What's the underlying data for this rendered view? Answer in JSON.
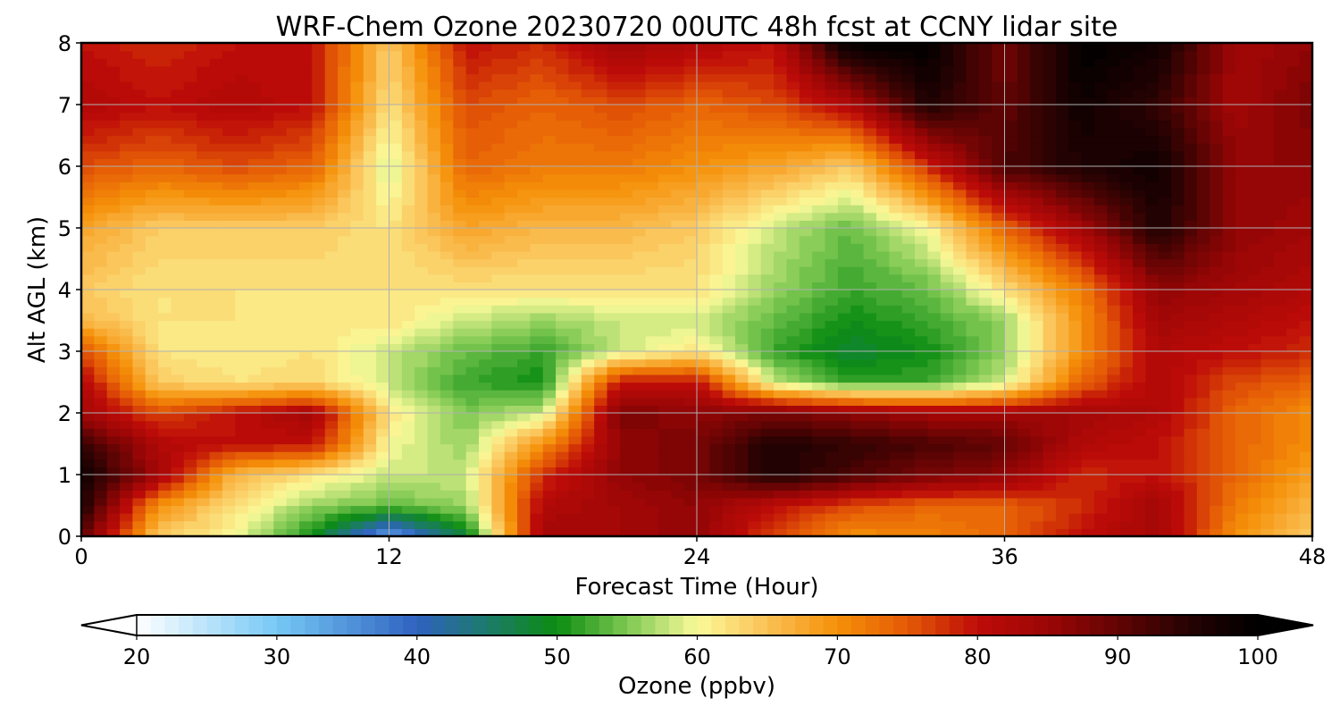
{
  "chart_data": {
    "type": "heatmap",
    "title": "WRF-Chem Ozone  20230720 00UTC 48h fcst at CCNY lidar site",
    "xlabel": "Forecast Time (Hour)",
    "ylabel": "Alt AGL (km)",
    "xlim": [
      0,
      48
    ],
    "ylim": [
      0,
      8
    ],
    "x_ticks": [
      0,
      12,
      24,
      36,
      48
    ],
    "y_ticks": [
      0,
      1,
      2,
      3,
      4,
      5,
      6,
      7,
      8
    ],
    "grid": true,
    "x": [
      0,
      3,
      6,
      9,
      12,
      15,
      18,
      21,
      24,
      27,
      30,
      33,
      36,
      39,
      42,
      45,
      48
    ],
    "y": [
      0,
      0.5,
      1,
      1.5,
      2,
      2.5,
      3,
      3.5,
      4,
      5,
      6,
      7,
      8
    ],
    "z": [
      [
        90,
        64,
        60,
        50,
        33,
        48,
        84,
        84,
        86,
        76,
        70,
        71,
        74,
        80,
        84,
        70,
        64
      ],
      [
        96,
        70,
        62,
        56,
        54,
        56,
        82,
        84,
        86,
        80,
        76,
        74,
        74,
        78,
        84,
        72,
        66
      ],
      [
        98,
        84,
        66,
        62,
        58,
        58,
        78,
        86,
        88,
        96,
        92,
        88,
        86,
        78,
        80,
        74,
        68
      ],
      [
        94,
        82,
        80,
        80,
        60,
        56,
        70,
        86,
        88,
        96,
        94,
        92,
        90,
        82,
        80,
        74,
        70
      ],
      [
        84,
        76,
        80,
        84,
        62,
        55,
        58,
        88,
        86,
        88,
        86,
        84,
        84,
        84,
        82,
        74,
        70
      ],
      [
        82,
        64,
        62,
        63,
        58,
        52,
        50,
        80,
        80,
        58,
        52,
        52,
        58,
        74,
        82,
        76,
        74
      ],
      [
        76,
        62,
        61,
        62,
        58,
        54,
        52,
        58,
        62,
        52,
        48,
        50,
        56,
        70,
        82,
        80,
        78
      ],
      [
        66,
        62,
        62,
        61,
        62,
        58,
        56,
        58,
        58,
        54,
        50,
        52,
        56,
        70,
        84,
        82,
        80
      ],
      [
        64,
        62,
        62,
        62,
        62,
        62,
        62,
        62,
        62,
        56,
        52,
        54,
        62,
        72,
        86,
        84,
        82
      ],
      [
        68,
        64,
        64,
        64,
        62,
        68,
        66,
        66,
        64,
        58,
        54,
        60,
        74,
        84,
        96,
        86,
        84
      ],
      [
        76,
        74,
        76,
        74,
        58,
        74,
        72,
        72,
        70,
        68,
        64,
        78,
        92,
        96,
        98,
        86,
        86
      ],
      [
        82,
        80,
        82,
        80,
        62,
        76,
        74,
        76,
        74,
        76,
        82,
        96,
        90,
        98,
        94,
        84,
        88
      ],
      [
        80,
        78,
        80,
        80,
        64,
        80,
        78,
        84,
        82,
        80,
        100,
        100,
        88,
        100,
        98,
        84,
        86
      ]
    ],
    "colorbar": {
      "label": "Ozone  (ppbv)",
      "min": 20,
      "max": 100,
      "ticks": [
        20,
        30,
        40,
        50,
        60,
        70,
        80,
        90,
        100
      ],
      "extend": "both",
      "levels": 80,
      "colors": [
        {
          "v": 20,
          "c": "#ffffff"
        },
        {
          "v": 30,
          "c": "#76c8f5"
        },
        {
          "v": 40,
          "c": "#2f62c0"
        },
        {
          "v": 45,
          "c": "#1c7a6a"
        },
        {
          "v": 50,
          "c": "#0c8c12"
        },
        {
          "v": 55,
          "c": "#7dc852"
        },
        {
          "v": 60,
          "c": "#fafa9a"
        },
        {
          "v": 65,
          "c": "#fbc055"
        },
        {
          "v": 70,
          "c": "#f59008"
        },
        {
          "v": 75,
          "c": "#e45a06"
        },
        {
          "v": 80,
          "c": "#be0c08"
        },
        {
          "v": 85,
          "c": "#9c0606"
        },
        {
          "v": 90,
          "c": "#620404"
        },
        {
          "v": 95,
          "c": "#260202"
        },
        {
          "v": 100,
          "c": "#000000"
        }
      ]
    }
  }
}
